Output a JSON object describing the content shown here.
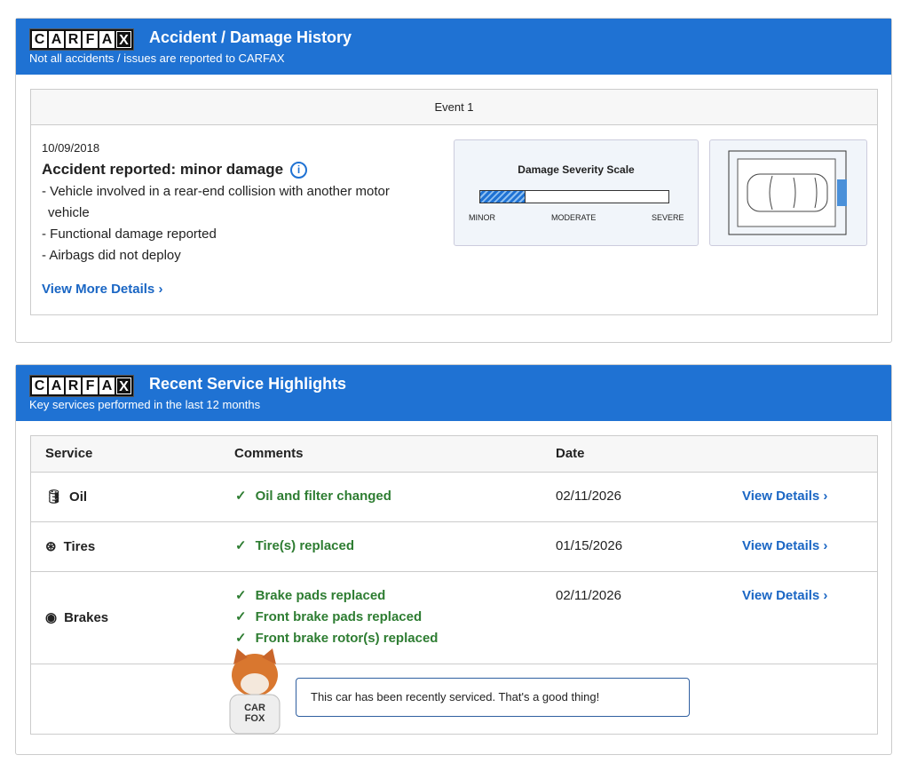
{
  "logo": "CARFAX",
  "accident": {
    "title": "Accident / Damage History",
    "subtitle": "Not all accidents / issues are reported to CARFAX",
    "event_label": "Event 1",
    "date": "10/09/2018",
    "heading": "Accident reported: minor damage",
    "info_icon": "info-icon",
    "bullets": [
      "- Vehicle involved in a rear-end collision with another motor",
      "vehicle",
      "- Functional damage reported",
      "- Airbags did not deploy"
    ],
    "view_more": "View More Details ›",
    "severity": {
      "title": "Damage Severity Scale",
      "labels": [
        "MINOR",
        "MODERATE",
        "SEVERE"
      ],
      "level_fraction": 0.24
    },
    "damage_location": "rear",
    "accent": "#1f72d3"
  },
  "service": {
    "title": "Recent Service Highlights",
    "subtitle": "Key services performed in the last 12 months",
    "columns": [
      "Service",
      "Comments",
      "Date"
    ],
    "rows": [
      {
        "service": "Oil",
        "icon": "oil-can-icon",
        "comments": [
          "Oil and filter changed"
        ],
        "date": "02/11/2026",
        "link": "View Details ›"
      },
      {
        "service": "Tires",
        "icon": "tire-icon",
        "comments": [
          "Tire(s) replaced"
        ],
        "date": "01/15/2026",
        "link": "View Details ›"
      },
      {
        "service": "Brakes",
        "icon": "brake-icon",
        "comments": [
          "Brake pads replaced",
          "Front brake pads replaced",
          "Front brake rotor(s) replaced"
        ],
        "date": "02/11/2026",
        "link": "View Details ›"
      }
    ],
    "fox_message": "This car has been recently serviced. That's a good thing!",
    "fox_shirt": "CAR FOX"
  }
}
